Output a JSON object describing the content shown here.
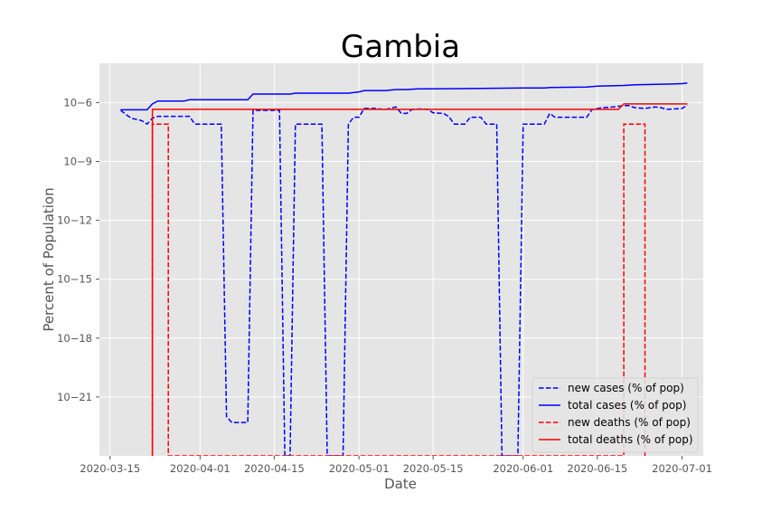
{
  "chart_data": {
    "type": "line",
    "title": "Gambia",
    "xlabel": "Date",
    "ylabel": "Percent of Population",
    "x_scale": "date",
    "y_scale": "log",
    "xlim": [
      "2020-03-13",
      "2020-07-05"
    ],
    "ylim": [
      1e-24,
      0.0001
    ],
    "grid": true,
    "legend_position": "lower-right",
    "x_ticks": [
      "2020-03-15",
      "2020-04-01",
      "2020-04-15",
      "2020-05-01",
      "2020-05-15",
      "2020-06-01",
      "2020-06-15",
      "2020-07-01"
    ],
    "y_ticks": [
      {
        "exp": -6,
        "label": "10−6"
      },
      {
        "exp": -9,
        "label": "10−9"
      },
      {
        "exp": -12,
        "label": "10−12"
      },
      {
        "exp": -15,
        "label": "10−15"
      },
      {
        "exp": -18,
        "label": "10−18"
      },
      {
        "exp": -21,
        "label": "10−21"
      }
    ],
    "series": [
      {
        "name": "new cases (% of pop)",
        "color": "#0000ff",
        "style": "dashed",
        "points": [
          [
            "2020-03-17",
            4.1e-07
          ],
          [
            "2020-03-18",
            2.5e-07
          ],
          [
            "2020-03-19",
            1.6e-07
          ],
          [
            "2020-03-21",
            1.2e-07
          ],
          [
            "2020-03-22",
            8e-08
          ],
          [
            "2020-03-23",
            1.6e-07
          ],
          [
            "2020-03-24",
            2e-07
          ],
          [
            "2020-03-29",
            2e-07
          ],
          [
            "2020-03-30",
            2e-07
          ],
          [
            "2020-03-31",
            8e-08
          ],
          [
            "2020-04-04",
            8e-08
          ],
          [
            "2020-04-05",
            8e-08
          ],
          [
            "2020-04-06",
            1e-22
          ],
          [
            "2020-04-07",
            5e-23
          ],
          [
            "2020-04-09",
            5e-23
          ],
          [
            "2020-04-10",
            5e-23
          ],
          [
            "2020-04-11",
            4e-07
          ],
          [
            "2020-04-16",
            4e-07
          ],
          [
            "2020-04-17",
            1e-24
          ],
          [
            "2020-04-18",
            1e-24
          ],
          [
            "2020-04-19",
            8e-08
          ],
          [
            "2020-04-23",
            8e-08
          ],
          [
            "2020-04-24",
            8e-08
          ],
          [
            "2020-04-25",
            1e-24
          ],
          [
            "2020-04-26",
            1e-24
          ],
          [
            "2020-04-27",
            1e-24
          ],
          [
            "2020-04-28",
            1e-24
          ],
          [
            "2020-04-29",
            8e-08
          ],
          [
            "2020-04-30",
            1.8e-07
          ],
          [
            "2020-05-01",
            1.8e-07
          ],
          [
            "2020-05-02",
            5e-07
          ],
          [
            "2020-05-04",
            5e-07
          ],
          [
            "2020-05-06",
            4.4e-07
          ],
          [
            "2020-05-08",
            6e-07
          ],
          [
            "2020-05-09",
            2.8e-07
          ],
          [
            "2020-05-10",
            2.8e-07
          ],
          [
            "2020-05-11",
            4.4e-07
          ],
          [
            "2020-05-13",
            4.8e-07
          ],
          [
            "2020-05-14",
            4.4e-07
          ],
          [
            "2020-05-15",
            3e-07
          ],
          [
            "2020-05-17",
            2.8e-07
          ],
          [
            "2020-05-18",
            1.9e-07
          ],
          [
            "2020-05-19",
            8e-08
          ],
          [
            "2020-05-21",
            8e-08
          ],
          [
            "2020-05-22",
            1.8e-07
          ],
          [
            "2020-05-24",
            1.8e-07
          ],
          [
            "2020-05-25",
            8e-08
          ],
          [
            "2020-05-27",
            8e-08
          ],
          [
            "2020-05-28",
            1e-24
          ],
          [
            "2020-05-29",
            1e-24
          ],
          [
            "2020-05-30",
            1e-24
          ],
          [
            "2020-05-31",
            1e-24
          ],
          [
            "2020-06-01",
            8e-08
          ],
          [
            "2020-06-04",
            8e-08
          ],
          [
            "2020-06-05",
            8e-08
          ],
          [
            "2020-06-06",
            2.8e-07
          ],
          [
            "2020-06-07",
            1.8e-07
          ],
          [
            "2020-06-13",
            1.8e-07
          ],
          [
            "2020-06-14",
            4.4e-07
          ],
          [
            "2020-06-16",
            5.5e-07
          ],
          [
            "2020-06-18",
            6e-07
          ],
          [
            "2020-06-20",
            7e-07
          ],
          [
            "2020-06-21",
            7e-07
          ],
          [
            "2020-06-22",
            5.5e-07
          ],
          [
            "2020-06-24",
            5e-07
          ],
          [
            "2020-06-26",
            6e-07
          ],
          [
            "2020-06-27",
            5.5e-07
          ],
          [
            "2020-06-28",
            4.5e-07
          ],
          [
            "2020-06-30",
            4.8e-07
          ],
          [
            "2020-07-01",
            5e-07
          ],
          [
            "2020-07-02",
            7.5e-07
          ]
        ]
      },
      {
        "name": "total cases (% of pop)",
        "color": "#0000ff",
        "style": "solid",
        "points": [
          [
            "2020-03-17",
            4.3e-07
          ],
          [
            "2020-03-22",
            4.3e-07
          ],
          [
            "2020-03-23",
            8.5e-07
          ],
          [
            "2020-03-24",
            1.2e-06
          ],
          [
            "2020-03-27",
            1.2e-06
          ],
          [
            "2020-03-29",
            1.2e-06
          ],
          [
            "2020-03-30",
            1.4e-06
          ],
          [
            "2020-04-09",
            1.4e-06
          ],
          [
            "2020-04-10",
            1.4e-06
          ],
          [
            "2020-04-11",
            2.7e-06
          ],
          [
            "2020-04-18",
            2.7e-06
          ],
          [
            "2020-04-19",
            3e-06
          ],
          [
            "2020-04-29",
            3e-06
          ],
          [
            "2020-05-01",
            3.5e-06
          ],
          [
            "2020-05-02",
            4.1e-06
          ],
          [
            "2020-05-06",
            4.1e-06
          ],
          [
            "2020-05-08",
            4.6e-06
          ],
          [
            "2020-05-10",
            4.6e-06
          ],
          [
            "2020-05-12",
            5e-06
          ],
          [
            "2020-05-20",
            5.1e-06
          ],
          [
            "2020-05-24",
            5.3e-06
          ],
          [
            "2020-06-01",
            5.5e-06
          ],
          [
            "2020-06-05",
            5.6e-06
          ],
          [
            "2020-06-06",
            5.9e-06
          ],
          [
            "2020-06-13",
            6.2e-06
          ],
          [
            "2020-06-15",
            6.9e-06
          ],
          [
            "2020-06-20",
            7.4e-06
          ],
          [
            "2020-06-22",
            8.1e-06
          ],
          [
            "2020-06-29",
            8.8e-06
          ],
          [
            "2020-07-01",
            9.2e-06
          ],
          [
            "2020-07-02",
            1e-05
          ]
        ]
      },
      {
        "name": "new deaths (% of pop)",
        "color": "#ff0000",
        "style": "dashed",
        "points": [
          [
            "2020-03-23",
            1e-24
          ],
          [
            "2020-03-23",
            8e-08
          ],
          [
            "2020-03-26",
            8e-08
          ],
          [
            "2020-03-26",
            1e-24
          ],
          [
            "2020-06-20",
            1e-24
          ],
          [
            "2020-06-20",
            8e-08
          ],
          [
            "2020-06-24",
            8e-08
          ],
          [
            "2020-06-24",
            1e-24
          ]
        ]
      },
      {
        "name": "total deaths (% of pop)",
        "color": "#ff0000",
        "style": "solid",
        "points": [
          [
            "2020-03-23",
            1e-24
          ],
          [
            "2020-03-23",
            4.5e-07
          ],
          [
            "2020-06-19",
            4.5e-07
          ],
          [
            "2020-06-20",
            8.5e-07
          ],
          [
            "2020-07-02",
            8.5e-07
          ]
        ]
      }
    ]
  }
}
